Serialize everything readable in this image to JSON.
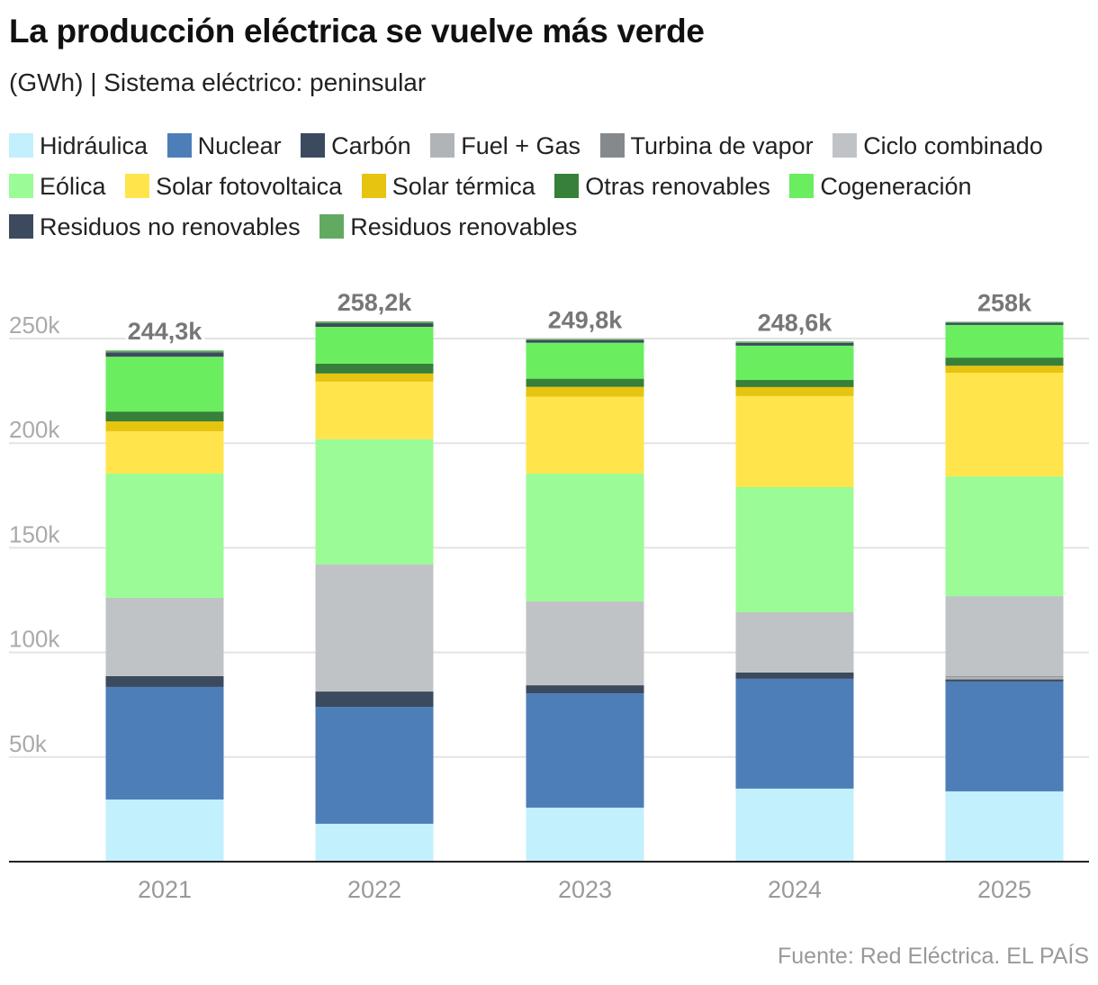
{
  "title": "La producción eléctrica se vuelve más verde",
  "subtitle": "(GWh) | Sistema eléctrico: peninsular",
  "source": "Fuente: Red Eléctrica. EL PAÍS",
  "chart_data": {
    "type": "bar",
    "stacked": true,
    "categories": [
      "2021",
      "2022",
      "2023",
      "2024",
      "2025"
    ],
    "totals_labels": [
      "244,3k",
      "258,2k",
      "249,8k",
      "248,6k",
      "258k"
    ],
    "ylim": [
      0,
      260000
    ],
    "yticks": [
      50000,
      100000,
      150000,
      200000,
      250000
    ],
    "ytick_labels": [
      "50k",
      "100k",
      "150k",
      "200k",
      "250k"
    ],
    "grid": true,
    "legend": "top",
    "series": [
      {
        "name": "Hidráulica",
        "color": "#c2f0fc",
        "values": [
          29700,
          18100,
          25800,
          34900,
          33600
        ]
      },
      {
        "name": "Nuclear",
        "color": "#4d7eb8",
        "values": [
          53800,
          55900,
          54600,
          52500,
          52500
        ]
      },
      {
        "name": "Carbón",
        "color": "#3b4a5e",
        "values": [
          5200,
          7300,
          3900,
          3000,
          1000
        ]
      },
      {
        "name": "Fuel + Gas",
        "color": "#b0b4b7",
        "values": [
          0,
          0,
          0,
          0,
          1000
        ]
      },
      {
        "name": "Turbina de vapor",
        "color": "#85898c",
        "values": [
          0,
          0,
          0,
          0,
          500
        ]
      },
      {
        "name": "Ciclo combinado",
        "color": "#c0c3c6",
        "values": [
          37400,
          60700,
          40100,
          28800,
          38300
        ]
      },
      {
        "name": "Eólica",
        "color": "#9bfb96",
        "values": [
          59400,
          59900,
          61100,
          59800,
          57200
        ]
      },
      {
        "name": "Solar fotovoltaica",
        "color": "#ffe54b",
        "values": [
          20200,
          27500,
          36700,
          43500,
          49500
        ]
      },
      {
        "name": "Solar térmica",
        "color": "#e7c40f",
        "values": [
          4700,
          3900,
          4700,
          4300,
          3400
        ]
      },
      {
        "name": "Otras renovables",
        "color": "#36803a",
        "values": [
          4700,
          4700,
          3900,
          3400,
          3900
        ]
      },
      {
        "name": "Cogeneración",
        "color": "#6aee5f",
        "values": [
          26200,
          17600,
          17200,
          16400,
          15600
        ]
      },
      {
        "name": "Residuos no renovables",
        "color": "#3d4a5e",
        "values": [
          2100,
          1700,
          1300,
          1300,
          1000
        ]
      },
      {
        "name": "Residuos renovables",
        "color": "#62aa62",
        "values": [
          900,
          900,
          500,
          700,
          500
        ]
      }
    ]
  }
}
